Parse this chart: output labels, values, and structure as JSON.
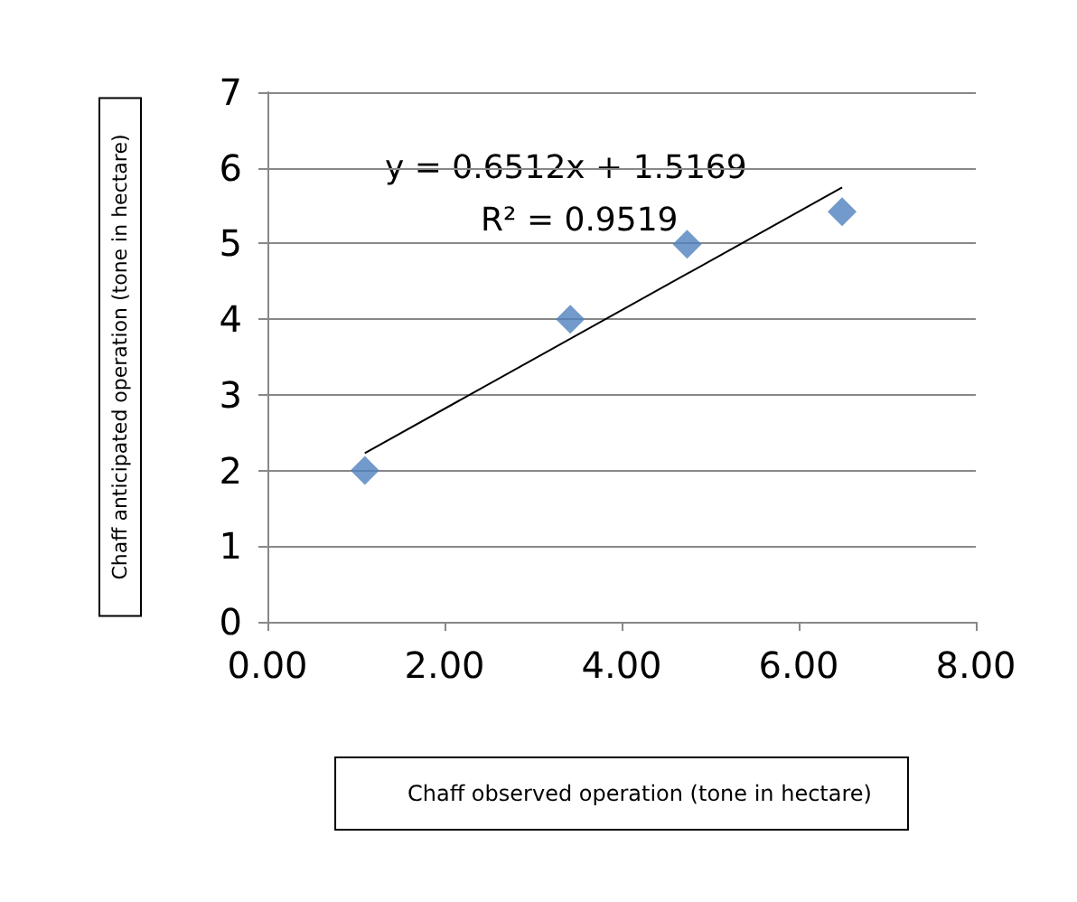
{
  "chart_data": {
    "type": "scatter",
    "xlabel": "Chaff observed operation (tone in hectare)",
    "ylabel": "Chaff anticipated operation (tone in hectare)",
    "series": [
      {
        "color": "#4f81bd",
        "x": [
          1.1,
          3.42,
          4.74,
          6.49
        ],
        "values": [
          2.0,
          4.0,
          4.99,
          5.42
        ]
      },
      {
        "type": "line",
        "color": "#000000",
        "marker": "none",
        "x": [
          1.1,
          6.49
        ],
        "values": [
          2.23,
          5.74
        ]
      }
    ],
    "xlim": [
      0,
      8
    ],
    "xticks": [
      {
        "value": 0,
        "label": "0.00"
      },
      {
        "value": 2,
        "label": "2.00"
      },
      {
        "value": 4,
        "label": "4.00"
      },
      {
        "value": 6,
        "label": "6.00"
      },
      {
        "value": 8,
        "label": "8.00"
      }
    ],
    "ylim": [
      0,
      7
    ],
    "yticks": [
      0,
      1,
      2,
      3,
      4,
      5,
      6,
      7
    ],
    "grid": "y",
    "marker": "diamond",
    "annotations": [
      "y = 0.6512x + 1.5169",
      "R² = 0.9519"
    ]
  }
}
